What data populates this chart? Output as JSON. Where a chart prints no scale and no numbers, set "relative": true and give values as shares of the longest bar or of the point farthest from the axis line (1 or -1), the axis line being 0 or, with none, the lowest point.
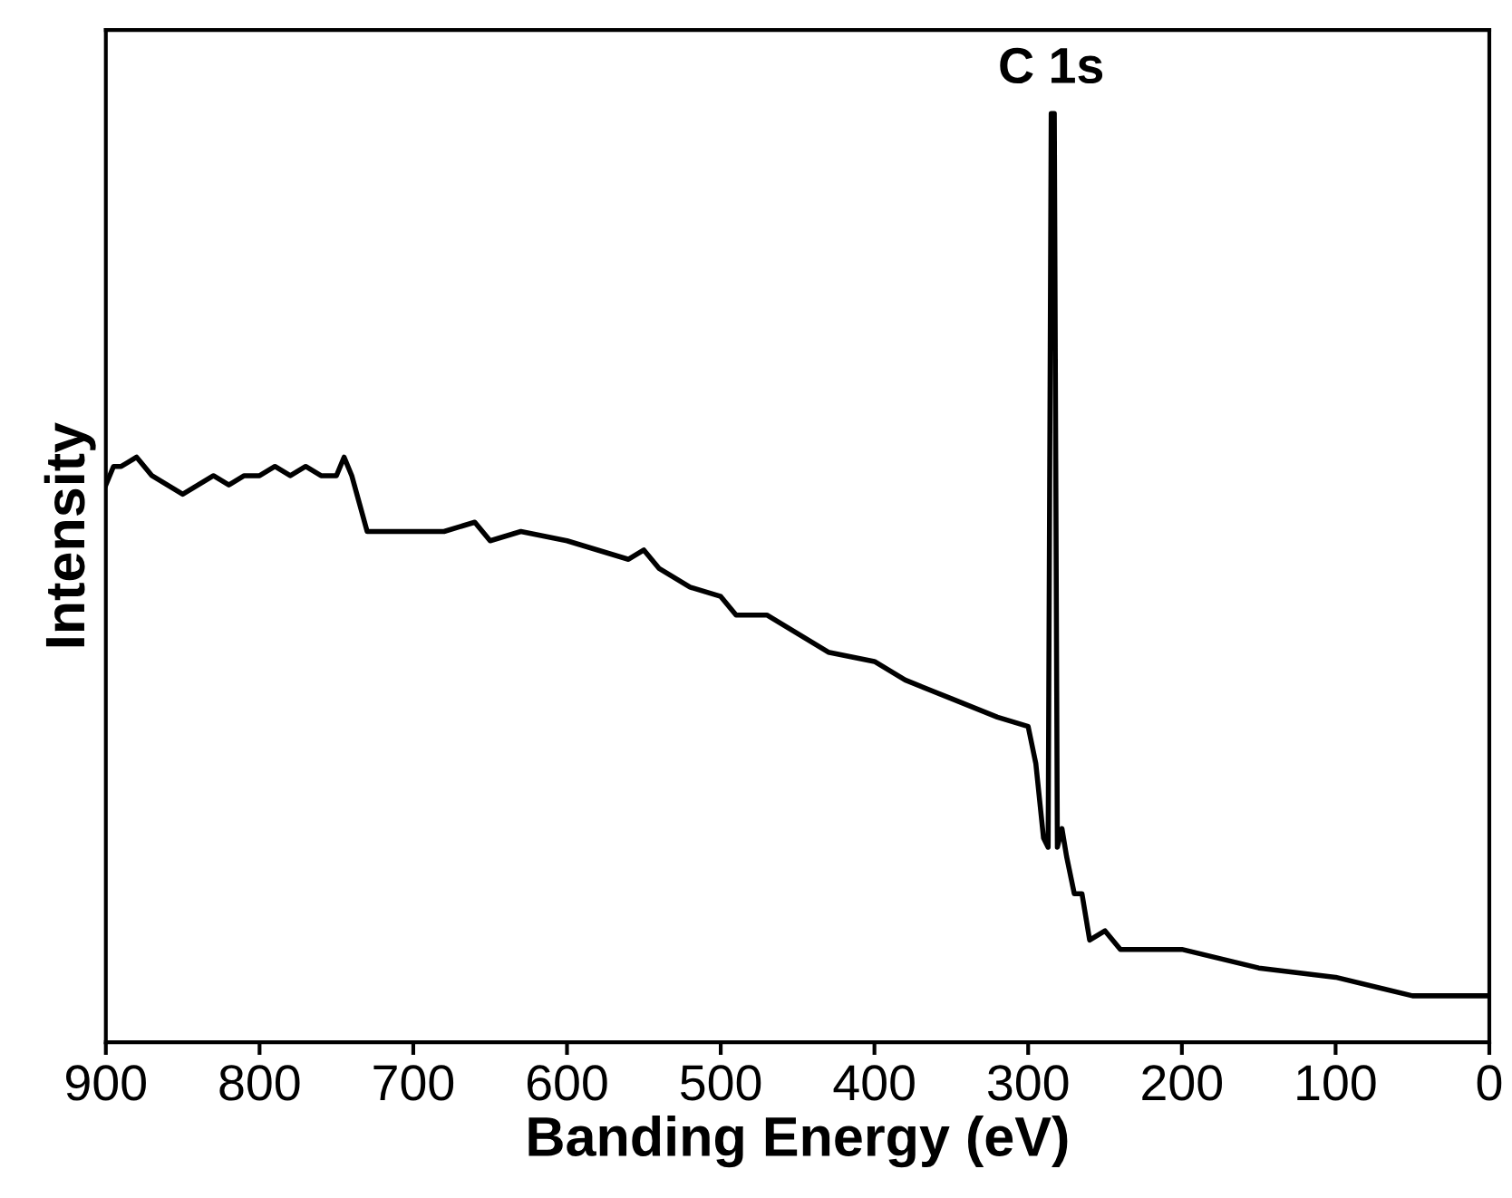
{
  "chart_data": {
    "type": "line",
    "relative": true,
    "xlabel": "Banding Energy (eV)",
    "ylabel": "Intensity",
    "xlim": [
      900,
      0
    ],
    "xticks": [
      900,
      800,
      700,
      600,
      500,
      400,
      300,
      200,
      100,
      0
    ],
    "grid": false,
    "legend": false,
    "marker": "none",
    "line_style": "solid",
    "tick_labels": "x",
    "annotations": [
      {
        "text": "C 1s",
        "x": 285,
        "y": 1
      }
    ],
    "series": [
      {
        "color": "#000000",
        "x": [
          900,
          895,
          890,
          880,
          870,
          860,
          850,
          840,
          830,
          820,
          810,
          800,
          790,
          780,
          770,
          760,
          750,
          745,
          740,
          735,
          730,
          720,
          700,
          680,
          660,
          650,
          630,
          600,
          580,
          560,
          550,
          540,
          520,
          500,
          490,
          470,
          450,
          430,
          400,
          380,
          350,
          320,
          300,
          295,
          290,
          287,
          285,
          283,
          281,
          278,
          275,
          270,
          265,
          260,
          250,
          240,
          200,
          150,
          100,
          50,
          0
        ],
        "values": [
          0.6,
          0.62,
          0.62,
          0.63,
          0.61,
          0.6,
          0.59,
          0.6,
          0.61,
          0.6,
          0.61,
          0.61,
          0.62,
          0.61,
          0.62,
          0.61,
          0.61,
          0.63,
          0.61,
          0.58,
          0.55,
          0.55,
          0.55,
          0.55,
          0.56,
          0.54,
          0.55,
          0.54,
          0.53,
          0.52,
          0.53,
          0.51,
          0.49,
          0.48,
          0.46,
          0.46,
          0.44,
          0.42,
          0.41,
          0.39,
          0.37,
          0.35,
          0.34,
          0.3,
          0.22,
          0.21,
          1.0,
          1.0,
          0.21,
          0.23,
          0.2,
          0.16,
          0.16,
          0.11,
          0.12,
          0.1,
          0.1,
          0.08,
          0.07,
          0.05,
          0.05
        ]
      }
    ]
  }
}
